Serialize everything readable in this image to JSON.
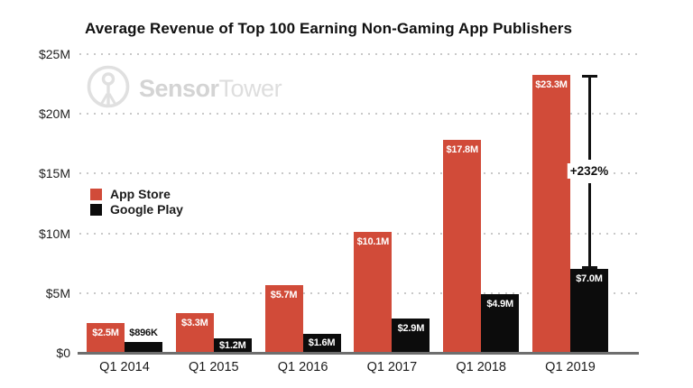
{
  "title": "Average Revenue of Top 100 Earning Non-Gaming App Publishers",
  "watermark": {
    "logo_icon": "sensor-tower-radio-tower-icon",
    "brand_bold": "Sensor",
    "brand_light": "Tower"
  },
  "legend": {
    "items": [
      {
        "label": "App Store"
      },
      {
        "label": "Google Play"
      }
    ]
  },
  "colors": {
    "app_store": "#d14b39",
    "google_play": "#0c0c0c",
    "grid": "#c9c9c9",
    "axis": "#6e6e6e",
    "watermark": "#dcdcdc",
    "background": "#ffffff"
  },
  "chart_data": {
    "type": "bar",
    "title": "Average Revenue of Top 100 Earning Non-Gaming App Publishers",
    "categories": [
      "Q1 2014",
      "Q1 2015",
      "Q1 2016",
      "Q1 2017",
      "Q1 2018",
      "Q1 2019"
    ],
    "series": [
      {
        "name": "App Store",
        "color": "#d14b39",
        "values": [
          2.5,
          3.3,
          5.7,
          10.1,
          17.8,
          23.3
        ],
        "labels": [
          "$2.5M",
          "$3.3M",
          "$5.7M",
          "$10.1M",
          "$17.8M",
          "$23.3M"
        ]
      },
      {
        "name": "Google Play",
        "color": "#0c0c0c",
        "values": [
          0.896,
          1.2,
          1.6,
          2.9,
          4.9,
          7.0
        ],
        "labels": [
          "$896K",
          "$1.2M",
          "$1.6M",
          "$2.9M",
          "$4.9M",
          "$7.0M"
        ]
      }
    ],
    "unit": "USD millions",
    "xlabel": "",
    "ylabel": "",
    "ylim": [
      0,
      25
    ],
    "yticks": {
      "values": [
        0,
        5,
        10,
        15,
        20,
        25
      ],
      "labels": [
        "$0",
        "$5M",
        "$10M",
        "$15M",
        "$20M",
        "$25M"
      ]
    },
    "grid": "dotted-horizontal",
    "legend_position": "middle-left",
    "annotation": {
      "label": "+232%",
      "category": "Q1 2019",
      "from_series": "App Store",
      "to_series": "Google Play"
    }
  }
}
